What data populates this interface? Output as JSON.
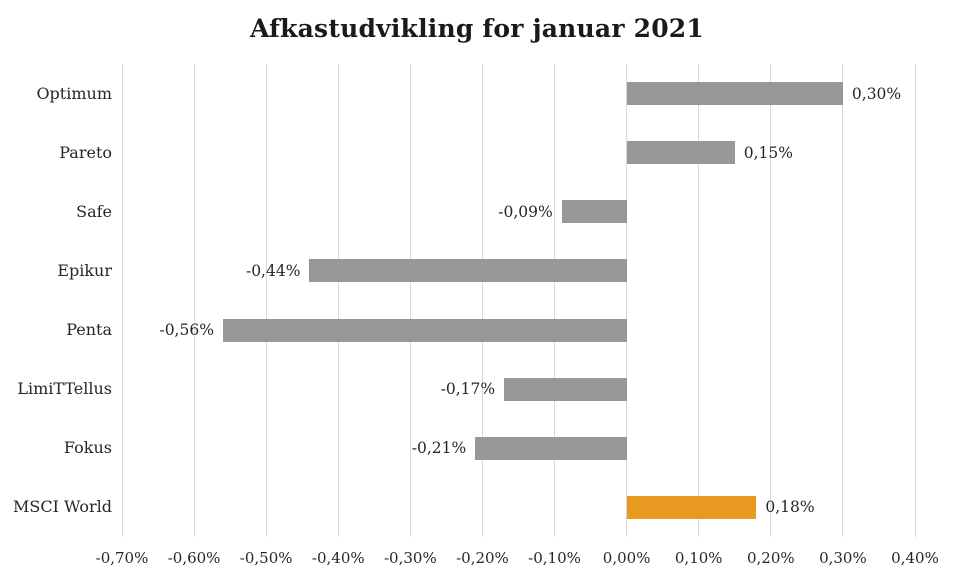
{
  "title": "Afkastudvikling for januar 2021",
  "colors": {
    "bar_default": "#97989a",
    "bar_highlight": "#e8991f",
    "gridline": "#d9d9d9",
    "text": "#262626",
    "title_text": "#1a1a1a",
    "background": "#ffffff"
  },
  "chart_data": {
    "type": "bar",
    "orientation": "horizontal",
    "title": "Afkastudvikling for januar 2021",
    "categories": [
      "Optimum",
      "Pareto",
      "Safe",
      "Epikur",
      "Penta",
      "LimiTTellus",
      "Fokus",
      "MSCI World"
    ],
    "values": [
      0.3,
      0.15,
      -0.09,
      -0.44,
      -0.56,
      -0.17,
      -0.21,
      0.18
    ],
    "value_labels": [
      "0,30%",
      "0,15%",
      "-0,09%",
      "-0,44%",
      "-0,56%",
      "-0,17%",
      "-0,21%",
      "0,18%"
    ],
    "highlight_category": "MSCI World",
    "xlim": [
      -0.7,
      0.4
    ],
    "x_tick_step": 0.1,
    "x_tick_values": [
      -0.7,
      -0.6,
      -0.5,
      -0.4,
      -0.3,
      -0.2,
      -0.1,
      0.0,
      0.1,
      0.2,
      0.3,
      0.4
    ],
    "x_tick_labels": [
      "-0,70%",
      "-0,60%",
      "-0,50%",
      "-0,40%",
      "-0,30%",
      "-0,20%",
      "-0,10%",
      "0,00%",
      "0,10%",
      "0,20%",
      "0,30%",
      "0,40%"
    ],
    "grid": "vertical",
    "legend": "none",
    "data_labels": "outside-end"
  }
}
